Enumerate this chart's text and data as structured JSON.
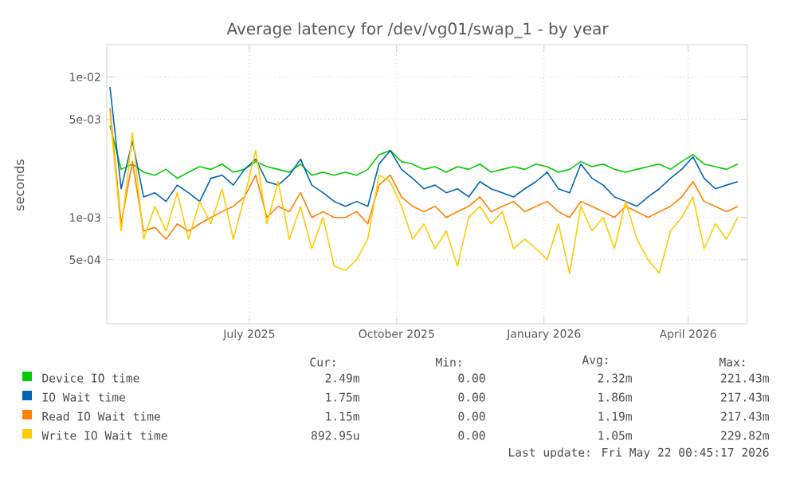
{
  "chart_data": {
    "type": "line",
    "title": "Average latency for /dev/vg01/swap_1 - by year",
    "ylabel": "seconds",
    "log": "y",
    "grid": true,
    "legend": "bottom",
    "marker": "none",
    "xlim": [
      "2025-04-18",
      "2026-05-23"
    ],
    "ylim": [
      0.000175,
      0.017
    ],
    "xticks": [
      {
        "value": "2025-07-16",
        "label": "July 2025"
      },
      {
        "value": "2025-10-16",
        "label": "October 2025"
      },
      {
        "value": "2026-01-16",
        "label": "January 2026"
      },
      {
        "value": "2026-04-16",
        "label": "April 2026"
      }
    ],
    "yticks": [
      {
        "value": 0.0005,
        "label": "5e-04"
      },
      {
        "value": 0.001,
        "label": "1e-03"
      },
      {
        "value": 0.005,
        "label": "5e-03"
      },
      {
        "value": 0.01,
        "label": "1e-02"
      }
    ],
    "x": [
      "2025-04-20",
      "2025-04-27",
      "2025-05-04",
      "2025-05-11",
      "2025-05-18",
      "2025-05-25",
      "2025-06-01",
      "2025-06-08",
      "2025-06-15",
      "2025-06-22",
      "2025-06-29",
      "2025-07-06",
      "2025-07-13",
      "2025-07-20",
      "2025-07-27",
      "2025-08-03",
      "2025-08-10",
      "2025-08-17",
      "2025-08-24",
      "2025-08-31",
      "2025-09-07",
      "2025-09-14",
      "2025-09-21",
      "2025-09-28",
      "2025-10-05",
      "2025-10-12",
      "2025-10-19",
      "2025-10-26",
      "2025-11-02",
      "2025-11-09",
      "2025-11-16",
      "2025-11-23",
      "2025-11-30",
      "2025-12-07",
      "2025-12-14",
      "2025-12-21",
      "2025-12-28",
      "2026-01-04",
      "2026-01-11",
      "2026-01-18",
      "2026-01-25",
      "2026-02-01",
      "2026-02-08",
      "2026-02-15",
      "2026-02-22",
      "2026-03-01",
      "2026-03-08",
      "2026-03-15",
      "2026-03-22",
      "2026-03-29",
      "2026-04-05",
      "2026-04-12",
      "2026-04-19",
      "2026-04-26",
      "2026-05-03",
      "2026-05-10",
      "2026-05-17"
    ],
    "series": [
      {
        "name": "Device IO time",
        "color": "#00cc00",
        "values": [
          0.0045,
          0.0022,
          0.0024,
          0.0021,
          0.002,
          0.0022,
          0.0019,
          0.0021,
          0.0023,
          0.0022,
          0.0024,
          0.0021,
          0.0022,
          0.0025,
          0.0023,
          0.0022,
          0.0021,
          0.0024,
          0.002,
          0.0021,
          0.002,
          0.0021,
          0.002,
          0.0022,
          0.0028,
          0.003,
          0.0025,
          0.0024,
          0.0022,
          0.0023,
          0.0021,
          0.0023,
          0.0022,
          0.0024,
          0.0021,
          0.0022,
          0.0023,
          0.0022,
          0.0024,
          0.0023,
          0.0021,
          0.0022,
          0.0025,
          0.0023,
          0.0024,
          0.0022,
          0.0021,
          0.0022,
          0.0023,
          0.0024,
          0.0022,
          0.0025,
          0.0028,
          0.0024,
          0.0023,
          0.0022,
          0.0024
        ]
      },
      {
        "name": "IO Wait time",
        "color": "#0066b3",
        "values": [
          0.0085,
          0.0016,
          0.0035,
          0.0014,
          0.0015,
          0.0013,
          0.0017,
          0.0015,
          0.0013,
          0.0019,
          0.002,
          0.0017,
          0.0022,
          0.0026,
          0.0018,
          0.0017,
          0.002,
          0.0026,
          0.0017,
          0.0015,
          0.0013,
          0.0012,
          0.0013,
          0.0012,
          0.0024,
          0.003,
          0.0022,
          0.0019,
          0.0016,
          0.0017,
          0.0015,
          0.0016,
          0.0014,
          0.0018,
          0.0016,
          0.0015,
          0.0014,
          0.0016,
          0.0018,
          0.0021,
          0.0016,
          0.0015,
          0.0024,
          0.0019,
          0.0017,
          0.0014,
          0.0013,
          0.0012,
          0.0014,
          0.0016,
          0.0019,
          0.0022,
          0.0027,
          0.0019,
          0.0016,
          0.0017,
          0.0018
        ]
      },
      {
        "name": "Read IO Wait time",
        "color": "#ff8000",
        "values": [
          0.006,
          0.0009,
          0.0025,
          0.0008,
          0.00085,
          0.0007,
          0.0009,
          0.0008,
          0.0009,
          0.001,
          0.0011,
          0.0012,
          0.0014,
          0.002,
          0.001,
          0.0012,
          0.0011,
          0.0015,
          0.001,
          0.0011,
          0.001,
          0.001,
          0.0011,
          0.0009,
          0.0017,
          0.002,
          0.0014,
          0.0012,
          0.0011,
          0.0012,
          0.001,
          0.0011,
          0.0012,
          0.0014,
          0.0011,
          0.0012,
          0.0013,
          0.0011,
          0.0012,
          0.0013,
          0.0011,
          0.001,
          0.0013,
          0.0012,
          0.0011,
          0.001,
          0.0012,
          0.0011,
          0.001,
          0.0011,
          0.0012,
          0.0014,
          0.0018,
          0.0013,
          0.0012,
          0.0011,
          0.0012
        ]
      },
      {
        "name": "Write IO Wait time",
        "color": "#ffcc00",
        "values": [
          0.0055,
          0.0008,
          0.004,
          0.0007,
          0.0012,
          0.0008,
          0.0015,
          0.0007,
          0.0013,
          0.0009,
          0.0016,
          0.0007,
          0.0014,
          0.003,
          0.0009,
          0.0018,
          0.0007,
          0.0012,
          0.0006,
          0.001,
          0.00045,
          0.00042,
          0.0005,
          0.0007,
          0.002,
          0.0018,
          0.0012,
          0.0007,
          0.0009,
          0.0006,
          0.0008,
          0.00045,
          0.001,
          0.0012,
          0.0009,
          0.0011,
          0.0006,
          0.0007,
          0.0006,
          0.0005,
          0.0009,
          0.0004,
          0.0012,
          0.0008,
          0.001,
          0.0006,
          0.0013,
          0.0007,
          0.0005,
          0.0004,
          0.0008,
          0.001,
          0.0014,
          0.0006,
          0.0009,
          0.0007,
          0.001
        ]
      }
    ],
    "annotations": [
      "Cur:",
      "Min:",
      "Avg:",
      "Max:",
      "2.49m",
      "0.00",
      "2.32m",
      "221.43m",
      "1.75m",
      "0.00",
      "1.86m",
      "217.43m",
      "1.15m",
      "0.00",
      "1.19m",
      "217.43m",
      "892.95u",
      "0.00",
      "1.05m",
      "229.82m",
      "Last update: Fri May 22 00:45:17 2026"
    ]
  }
}
